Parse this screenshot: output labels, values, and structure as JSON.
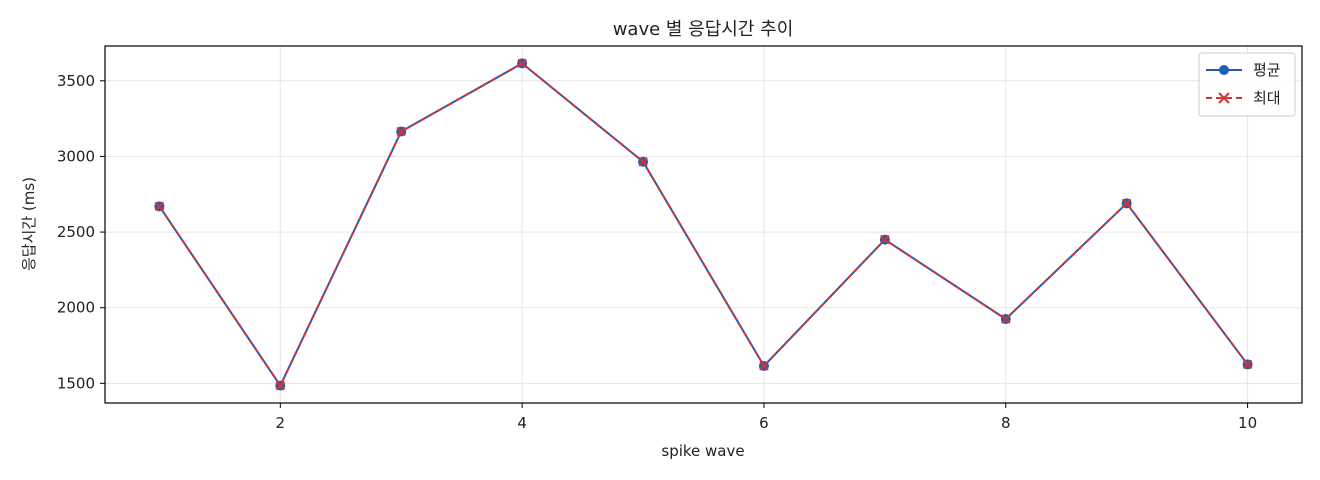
{
  "chart_data": {
    "type": "line",
    "title": "wave 별 응답시간 추이",
    "xlabel": "spike wave",
    "ylabel": "응답시간 (ms)",
    "x": [
      1,
      2,
      3,
      4,
      5,
      6,
      7,
      8,
      9,
      10
    ],
    "xlim": [
      0.55,
      10.45
    ],
    "ylim": [
      1370,
      3730
    ],
    "xticks": [
      2,
      4,
      6,
      8,
      10
    ],
    "yticks": [
      1500,
      2000,
      2500,
      3000,
      3500
    ],
    "grid": true,
    "legend_position": "top-right",
    "series": [
      {
        "name": "평균",
        "values": [
          2670,
          1485,
          3165,
          3615,
          2965,
          1615,
          2450,
          1925,
          2690,
          1625
        ],
        "color": "#1f5fb4",
        "linestyle": "solid",
        "marker": "circle"
      },
      {
        "name": "최대",
        "values": [
          2670,
          1485,
          3165,
          3615,
          2965,
          1615,
          2450,
          1925,
          2690,
          1625
        ],
        "color": "#d0343a",
        "linestyle": "dashed",
        "marker": "x"
      }
    ]
  }
}
